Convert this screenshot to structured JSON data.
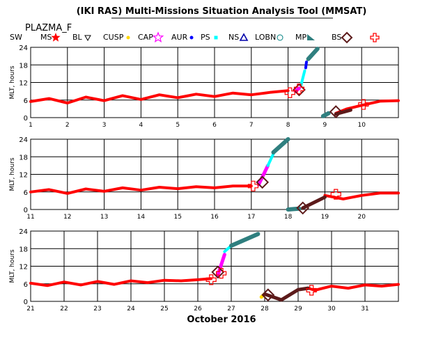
{
  "header": {
    "title": "(IKI RAS) Multi-Missions Situation Analysis Tool (MMSAT)",
    "mission": "PLAZMA_F"
  },
  "legend": {
    "items": [
      {
        "label": "SW",
        "symbol": "none",
        "color": "#000000"
      },
      {
        "label": "MS",
        "symbol": "star",
        "color": "#ff0000"
      },
      {
        "label": "BL",
        "symbol": "triangle-down",
        "color": "#000000"
      },
      {
        "label": "CUSP",
        "symbol": "dot",
        "color": "#ffd700"
      },
      {
        "label": "CAP",
        "symbol": "star-outline",
        "color": "#ff00ff"
      },
      {
        "label": "AUR",
        "symbol": "dot",
        "color": "#0000ff"
      },
      {
        "label": "PS",
        "symbol": "square",
        "color": "#00ffff"
      },
      {
        "label": "NS",
        "symbol": "triangle-up",
        "color": "#0000aa"
      },
      {
        "label": "LOBN",
        "symbol": "circle",
        "color": "#008080"
      },
      {
        "label": "MP",
        "symbol": "triangle-right",
        "color": "#2f7f7f"
      },
      {
        "label": "BS",
        "symbol": "diamond",
        "color": "#5c1a1a"
      },
      {
        "label": "",
        "symbol": "cross-outline",
        "color": "#ff0000"
      }
    ]
  },
  "footer": {
    "xlabel": "October 2016"
  },
  "chart_data": [
    {
      "type": "scatter",
      "ylabel": "MLT, hours",
      "xlim": [
        1,
        11
      ],
      "ylim": [
        0,
        24
      ],
      "xticks": [
        1,
        2,
        3,
        4,
        5,
        6,
        7,
        8,
        9,
        10
      ],
      "yticks": [
        0,
        6,
        12,
        18,
        24
      ],
      "grid": true,
      "series": [
        {
          "region": "SW",
          "color": "#ff0000",
          "points": [
            [
              1,
              5.5
            ],
            [
              1.5,
              6.5
            ],
            [
              2,
              5
            ],
            [
              2.5,
              7
            ],
            [
              3,
              5.8
            ],
            [
              3.5,
              7.5
            ],
            [
              4,
              6.2
            ],
            [
              4.5,
              7.8
            ],
            [
              5,
              6.8
            ],
            [
              5.5,
              8
            ],
            [
              6,
              7.2
            ],
            [
              6.5,
              8.4
            ],
            [
              7,
              7.8
            ],
            [
              7.5,
              8.6
            ],
            [
              8,
              9.2
            ]
          ]
        },
        {
          "region": "SW",
          "color": "#ff0000",
          "points": [
            [
              9.3,
              1.5
            ],
            [
              9.6,
              3
            ],
            [
              10,
              4.2
            ],
            [
              10.5,
              5.6
            ],
            [
              11,
              5.8
            ]
          ]
        },
        {
          "region": "CAP",
          "color": "#ff00ff",
          "points": [
            [
              8.2,
              9
            ],
            [
              8.3,
              10
            ]
          ]
        },
        {
          "region": "PS",
          "color": "#00ffff",
          "points": [
            [
              8.35,
              11
            ],
            [
              8.45,
              16
            ]
          ]
        },
        {
          "region": "AUR",
          "color": "#0000ff",
          "points": [
            [
              8.48,
              17
            ],
            [
              8.5,
              19
            ]
          ]
        },
        {
          "region": "MP",
          "color": "#2f7f7f",
          "points": [
            [
              8.55,
              20
            ],
            [
              8.8,
              23.5
            ]
          ]
        },
        {
          "region": "MP",
          "color": "#2f7f7f",
          "points": [
            [
              8.95,
              0.5
            ],
            [
              9.1,
              1.5
            ]
          ]
        },
        {
          "region": "BS",
          "color": "#5c1a1a",
          "points": [
            [
              9.3,
              1.2
            ],
            [
              9.7,
              2.6
            ]
          ]
        },
        {
          "region": "BS marker",
          "color": "#5c1a1a",
          "points": [
            [
              8.3,
              9.5
            ],
            [
              9.3,
              2
            ]
          ]
        },
        {
          "region": "crossing",
          "color": "#ff0000",
          "points": [
            [
              8.05,
              8.5
            ],
            [
              8.3,
              9.8
            ],
            [
              10.05,
              4.5
            ]
          ]
        }
      ]
    },
    {
      "type": "scatter",
      "ylabel": "MLT, hours",
      "xlim": [
        11,
        21
      ],
      "ylim": [
        0,
        24
      ],
      "xticks": [
        11,
        12,
        13,
        14,
        15,
        16,
        17,
        18,
        19,
        20
      ],
      "yticks": [
        0,
        6,
        12,
        18,
        24
      ],
      "grid": true,
      "series": [
        {
          "region": "SW",
          "color": "#ff0000",
          "points": [
            [
              11,
              6
            ],
            [
              11.5,
              6.8
            ],
            [
              12,
              5.5
            ],
            [
              12.5,
              7
            ],
            [
              13,
              6.2
            ],
            [
              13.5,
              7.4
            ],
            [
              14,
              6.6
            ],
            [
              14.5,
              7.6
            ],
            [
              15,
              7.1
            ],
            [
              15.5,
              7.8
            ],
            [
              16,
              7.4
            ],
            [
              16.5,
              8
            ],
            [
              17,
              8
            ]
          ]
        },
        {
          "region": "SW",
          "color": "#ff0000",
          "points": [
            [
              19,
              4.8
            ],
            [
              19.5,
              3.6
            ],
            [
              20,
              4.8
            ],
            [
              20.5,
              5.6
            ],
            [
              21,
              5.6
            ]
          ]
        },
        {
          "region": "CAP",
          "color": "#ff00ff",
          "points": [
            [
              17.2,
              8.5
            ],
            [
              17.45,
              15
            ]
          ]
        },
        {
          "region": "PS",
          "color": "#00ffff",
          "points": [
            [
              17.45,
              15
            ],
            [
              17.6,
              19
            ]
          ]
        },
        {
          "region": "MP",
          "color": "#2f7f7f",
          "points": [
            [
              17.6,
              19.5
            ],
            [
              18,
              24
            ]
          ]
        },
        {
          "region": "MP",
          "color": "#2f7f7f",
          "points": [
            [
              18,
              0
            ],
            [
              18.3,
              0.3
            ]
          ]
        },
        {
          "region": "BS",
          "color": "#5c1a1a",
          "points": [
            [
              18.4,
              0.5
            ],
            [
              19,
              4.2
            ]
          ]
        },
        {
          "region": "BS marker",
          "color": "#5c1a1a",
          "points": [
            [
              17.3,
              9.3
            ],
            [
              18.4,
              0.5
            ]
          ]
        },
        {
          "region": "crossing",
          "color": "#ff0000",
          "points": [
            [
              17.05,
              8
            ],
            [
              19.3,
              5.2
            ]
          ]
        }
      ]
    },
    {
      "type": "scatter",
      "ylabel": "MLT, hours",
      "xlim": [
        21,
        32
      ],
      "ylim": [
        0,
        24
      ],
      "xticks": [
        21,
        22,
        23,
        24,
        25,
        26,
        27,
        28,
        29,
        30,
        31
      ],
      "yticks": [
        0,
        6,
        12,
        18,
        24
      ],
      "grid": true,
      "series": [
        {
          "region": "SW",
          "color": "#ff0000",
          "points": [
            [
              21,
              6.2
            ],
            [
              21.5,
              5.4
            ],
            [
              22,
              6.6
            ],
            [
              22.5,
              5.6
            ],
            [
              23,
              6.8
            ],
            [
              23.5,
              5.8
            ],
            [
              24,
              7
            ],
            [
              24.5,
              6.4
            ],
            [
              25,
              7.2
            ],
            [
              25.5,
              7
            ],
            [
              26,
              7.4
            ],
            [
              26.4,
              7.8
            ]
          ]
        },
        {
          "region": "SW",
          "color": "#ff0000",
          "points": [
            [
              29.3,
              4.5
            ],
            [
              29.5,
              3.8
            ],
            [
              30,
              5.2
            ],
            [
              30.5,
              4.5
            ],
            [
              31,
              5.6
            ],
            [
              31.5,
              5.2
            ],
            [
              32,
              5.8
            ]
          ]
        },
        {
          "region": "CAP",
          "color": "#ff00ff",
          "points": [
            [
              26.6,
              9
            ],
            [
              26.8,
              16
            ]
          ]
        },
        {
          "region": "PS",
          "color": "#00ffff",
          "points": [
            [
              26.8,
              17
            ],
            [
              27,
              19
            ]
          ]
        },
        {
          "region": "MP",
          "color": "#2f7f7f",
          "points": [
            [
              27,
              19
            ],
            [
              27.8,
              23
            ]
          ]
        },
        {
          "region": "CUSP",
          "color": "#ffd700",
          "points": [
            [
              27.9,
              1.5
            ],
            [
              28,
              2.5
            ]
          ]
        },
        {
          "region": "BS",
          "color": "#5c1a1a",
          "points": [
            [
              28,
              2.5
            ],
            [
              28.5,
              0.5
            ],
            [
              29,
              4
            ],
            [
              29.3,
              4.5
            ]
          ]
        },
        {
          "region": "BS marker",
          "color": "#5c1a1a",
          "points": [
            [
              26.6,
              10
            ],
            [
              28.1,
              2.2
            ]
          ]
        },
        {
          "region": "crossing",
          "color": "#ff0000",
          "points": [
            [
              26.4,
              7.4
            ],
            [
              26.7,
              9.6
            ],
            [
              29.4,
              3.8
            ]
          ]
        }
      ]
    }
  ]
}
